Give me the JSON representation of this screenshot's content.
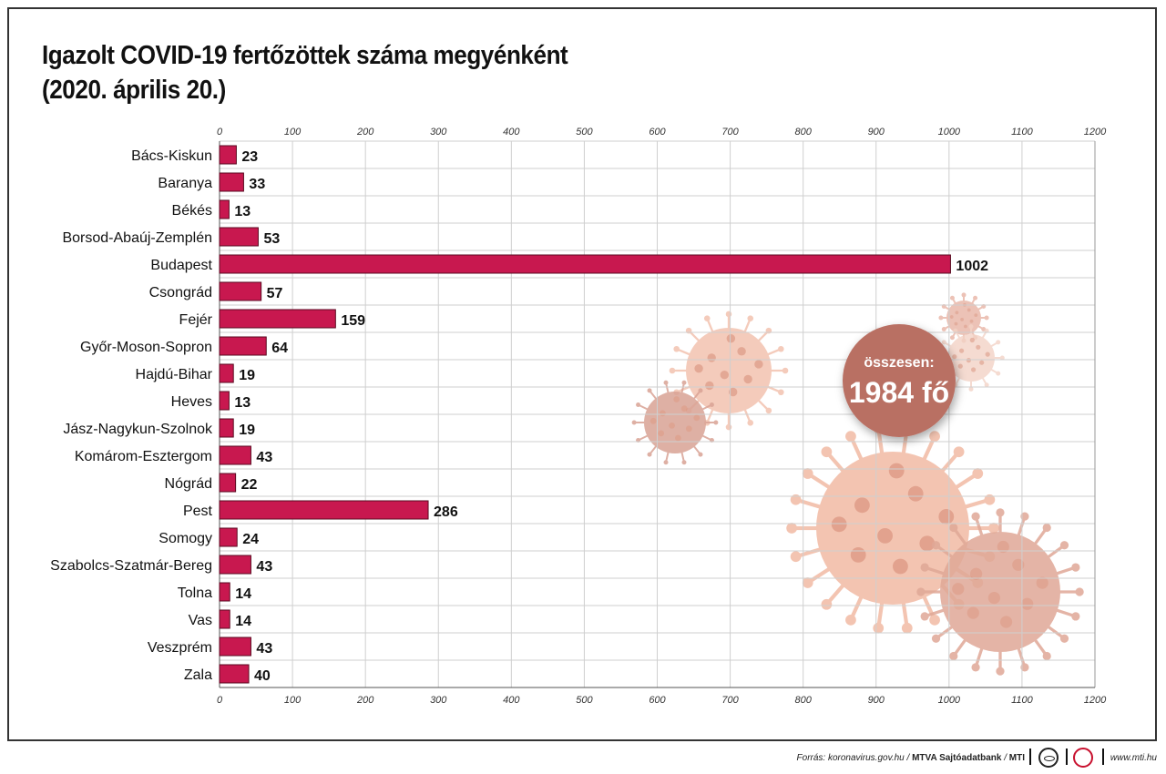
{
  "title": {
    "line1": "Igazolt COVID-19 fertőzöttek száma megyénként",
    "line2": "(2020. április 20.)"
  },
  "total": {
    "label": "összesen:",
    "value": "1984 fő"
  },
  "footer": {
    "source_prefix": "Forrás: koronavirus.gov.hu / ",
    "source_bold": "MTVA Sajtóadatbank",
    "source_suffix": " / ",
    "source_mti": "MTI",
    "website": "www.mti.hu"
  },
  "colors": {
    "bar": "#c8184f",
    "bar_stroke": "#5a0a20",
    "grid": "#cfcfcf",
    "badge": "#b96f63",
    "virus": "#f0b8a3"
  },
  "chart_data": {
    "type": "bar",
    "orientation": "horizontal",
    "categories": [
      "Bács-Kiskun",
      "Baranya",
      "Békés",
      "Borsod-Abaúj-Zemplén",
      "Budapest",
      "Csongrád",
      "Fejér",
      "Győr-Moson-Sopron",
      "Hajdú-Bihar",
      "Heves",
      "Jász-Nagykun-Szolnok",
      "Komárom-Esztergom",
      "Nógrád",
      "Pest",
      "Somogy",
      "Szabolcs-Szatmár-Bereg",
      "Tolna",
      "Vas",
      "Veszprém",
      "Zala"
    ],
    "values": [
      23,
      33,
      13,
      53,
      1002,
      57,
      159,
      64,
      19,
      13,
      19,
      43,
      22,
      286,
      24,
      43,
      14,
      14,
      43,
      40
    ],
    "xlim": [
      0,
      1200
    ],
    "xticks": [
      0,
      100,
      200,
      300,
      400,
      500,
      600,
      700,
      800,
      900,
      1000,
      1100,
      1200
    ],
    "xtick_position": "top and bottom",
    "grid": true,
    "title": "Igazolt COVID-19 fertőzöttek száma megyénként (2020. április 20.)"
  }
}
